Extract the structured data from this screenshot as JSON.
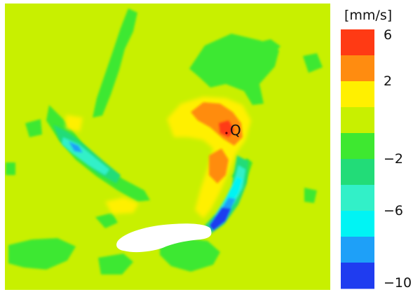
{
  "chart_data": {
    "type": "heatmap",
    "colorbar": {
      "unit": "[mm/s]",
      "range": [
        -10,
        6
      ],
      "tick_labels": [
        "6",
        "2",
        "−2",
        "−6",
        "−10"
      ],
      "tick_values": [
        6,
        2,
        -2,
        -6,
        -10
      ],
      "bins": [
        {
          "from": 4,
          "to": 6,
          "color": "#ff3a14"
        },
        {
          "from": 2,
          "to": 4,
          "color": "#ff8c10"
        },
        {
          "from": 0,
          "to": 2,
          "color": "#fff000"
        },
        {
          "from": -1,
          "to": 0,
          "color": "#c8f000"
        },
        {
          "from": -2,
          "to": -1,
          "color": "#3ee830"
        },
        {
          "from": -4,
          "to": -2,
          "color": "#22dc78"
        },
        {
          "from": -6,
          "to": -4,
          "color": "#32f0c8"
        },
        {
          "from": -8,
          "to": -6,
          "color": "#00f4f4"
        },
        {
          "from": -9,
          "to": -8,
          "color": "#1ea0f8"
        },
        {
          "from": -10,
          "to": -9,
          "color": "#1f3cf0"
        }
      ]
    },
    "background_color": "#c8f000",
    "point_label": "Q"
  }
}
